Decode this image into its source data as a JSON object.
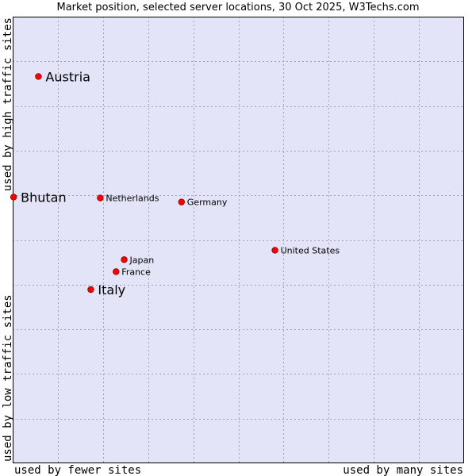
{
  "chart_data": {
    "type": "scatter",
    "title": "Market position, selected server locations, 30 Oct 2025, W3Techs.com",
    "xlabel_left": "used by fewer sites",
    "xlabel_right": "used by many sites",
    "ylabel_bottom": "used by low traffic sites",
    "ylabel_top": "used by high traffic sites",
    "xlim": [
      0,
      100
    ],
    "ylim": [
      0,
      100
    ],
    "grid": true,
    "x_gridlines": [
      10,
      20,
      30,
      40,
      50,
      60,
      70,
      80,
      90
    ],
    "y_gridlines": [
      10,
      20,
      30,
      40,
      50,
      60,
      70,
      80,
      90
    ],
    "points": [
      {
        "name": "Austria",
        "x": 5.7,
        "y": 86.6,
        "emphasis": "large"
      },
      {
        "name": "Bhutan",
        "x": 0.2,
        "y": 59.6,
        "emphasis": "large"
      },
      {
        "name": "Netherlands",
        "x": 19.4,
        "y": 59.4,
        "emphasis": "small"
      },
      {
        "name": "Germany",
        "x": 37.4,
        "y": 58.5,
        "emphasis": "small"
      },
      {
        "name": "United States",
        "x": 58.1,
        "y": 47.7,
        "emphasis": "small"
      },
      {
        "name": "Japan",
        "x": 24.7,
        "y": 45.6,
        "emphasis": "small"
      },
      {
        "name": "France",
        "x": 22.9,
        "y": 42.9,
        "emphasis": "small"
      },
      {
        "name": "Italy",
        "x": 17.3,
        "y": 38.9,
        "emphasis": "large"
      }
    ]
  },
  "colors": {
    "plot_background": "#e4e4f8",
    "plot_border": "#000000",
    "grid": "#a0a0b8",
    "point_fill": "#ff0000",
    "point_stroke": "#880000"
  }
}
